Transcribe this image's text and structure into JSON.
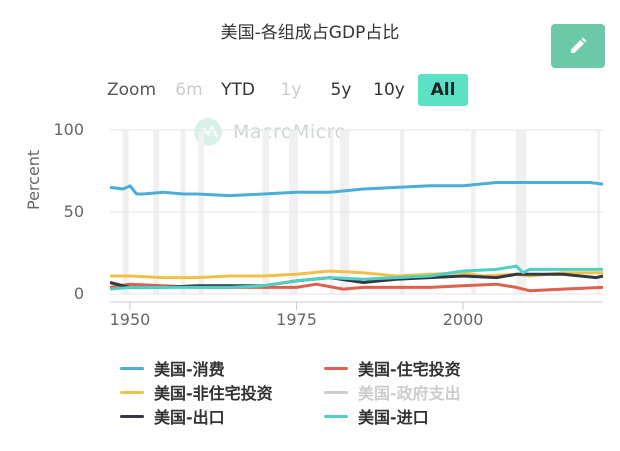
{
  "header": {
    "title": "美国-各组成占GDP占比",
    "edit_icon": "pencil-icon",
    "edit_color": "#6cc9a8"
  },
  "zoom": {
    "label": "Zoom",
    "options": [
      {
        "label": "6m",
        "state": "disabled"
      },
      {
        "label": "YTD",
        "state": "enabled"
      },
      {
        "label": "1y",
        "state": "disabled"
      },
      {
        "label": "5y",
        "state": "enabled"
      },
      {
        "label": "10y",
        "state": "enabled"
      },
      {
        "label": "All",
        "state": "active"
      }
    ]
  },
  "watermark": {
    "text": "MacroMicro",
    "icon": "macromicro-logo-icon"
  },
  "chart_data": {
    "type": "line",
    "title": "美国-各组成占GDP占比",
    "xlabel": "",
    "ylabel": "Percent",
    "ylim": [
      0,
      100
    ],
    "xlim": [
      1947,
      2021
    ],
    "yticks": [
      "0",
      "50",
      "100"
    ],
    "xticks": [
      "1950",
      "1975",
      "2000"
    ],
    "grid": true,
    "legend_position": "bottom",
    "recession_shading": true,
    "series": [
      {
        "name": "美国-消费",
        "color": "#4aaed8",
        "visible": true,
        "x": [
          1947,
          1949,
          1950,
          1951,
          1952,
          1955,
          1958,
          1960,
          1965,
          1970,
          1975,
          1980,
          1985,
          1990,
          1995,
          2000,
          2005,
          2008,
          2010,
          2015,
          2019,
          2021
        ],
        "y": [
          65,
          64,
          66,
          61,
          61,
          62,
          61,
          61,
          60,
          61,
          62,
          62,
          64,
          65,
          66,
          66,
          68,
          68,
          68,
          68,
          68,
          67
        ]
      },
      {
        "name": "美国-住宅投资",
        "color": "#e0604e",
        "visible": true,
        "x": [
          1947,
          1950,
          1955,
          1960,
          1965,
          1970,
          1975,
          1978,
          1982,
          1985,
          1990,
          1995,
          2000,
          2005,
          2008,
          2010,
          2015,
          2021
        ],
        "y": [
          4,
          6,
          5,
          4,
          4,
          4,
          4,
          6,
          3,
          4,
          4,
          4,
          5,
          6,
          4,
          2,
          3,
          4
        ]
      },
      {
        "name": "美国-非住宅投资",
        "color": "#f1c04a",
        "visible": true,
        "x": [
          1947,
          1950,
          1955,
          1960,
          1965,
          1970,
          1975,
          1980,
          1985,
          1990,
          1995,
          2000,
          2003,
          2008,
          2010,
          2015,
          2021
        ],
        "y": [
          11,
          11,
          10,
          10,
          11,
          11,
          12,
          14,
          13,
          11,
          12,
          13,
          11,
          12,
          11,
          13,
          13
        ]
      },
      {
        "name": "美国-政府支出",
        "color": "#cccccc",
        "visible": false,
        "x": [],
        "y": []
      },
      {
        "name": "美国-出口",
        "color": "#333844",
        "visible": true,
        "x": [
          1947,
          1950,
          1955,
          1960,
          1965,
          1970,
          1975,
          1980,
          1985,
          1990,
          1995,
          2000,
          2005,
          2008,
          2010,
          2015,
          2020,
          2021
        ],
        "y": [
          7,
          4,
          4,
          5,
          5,
          5,
          8,
          10,
          7,
          9,
          10,
          11,
          10,
          12,
          12,
          12,
          10,
          11
        ]
      },
      {
        "name": "美国-进口",
        "color": "#4fd0c3",
        "visible": true,
        "x": [
          1947,
          1950,
          1955,
          1960,
          1965,
          1970,
          1975,
          1980,
          1985,
          1990,
          1995,
          2000,
          2005,
          2008,
          2009,
          2010,
          2015,
          2021
        ],
        "y": [
          3,
          4,
          4,
          4,
          4,
          5,
          8,
          10,
          9,
          10,
          11,
          14,
          15,
          17,
          13,
          15,
          15,
          15
        ]
      }
    ]
  }
}
